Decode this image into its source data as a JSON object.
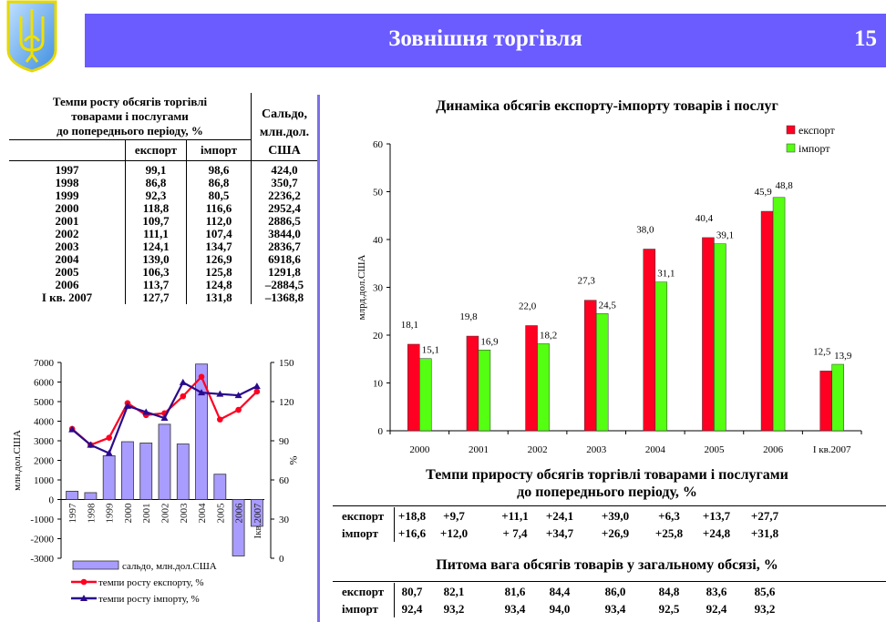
{
  "header": {
    "title": "Зовнішня торгівля",
    "page_number": "15"
  },
  "left_table": {
    "header_rates": "Темпи росту обсягів торгівлі товарами і послугами до попереднього періоду, %",
    "header_rates_lines": [
      "Темпи росту обсягів торгівлі",
      "товарами і послугами",
      "до попереднього періоду, %"
    ],
    "header_export": "експорт",
    "header_import": "імпорт",
    "header_balance_lines": [
      "Сальдо,",
      "млн.дол.",
      "США"
    ],
    "rows": [
      {
        "year": "1997",
        "export": "99,1",
        "import": "98,6",
        "balance": "424,0"
      },
      {
        "year": "1998",
        "export": "86,8",
        "import": "86,8",
        "balance": "350,7"
      },
      {
        "year": "1999",
        "export": "92,3",
        "import": "80,5",
        "balance": "2236,2"
      },
      {
        "year": "2000",
        "export": "118,8",
        "import": "116,6",
        "balance": "2952,4"
      },
      {
        "year": "2001",
        "export": "109,7",
        "import": "112,0",
        "balance": "2886,5"
      },
      {
        "year": "2002",
        "export": "111,1",
        "import": "107,4",
        "balance": "3844,0"
      },
      {
        "year": "2003",
        "export": "124,1",
        "import": "134,7",
        "balance": "2836,7"
      },
      {
        "year": "2004",
        "export": "139,0",
        "import": "126,9",
        "balance": "6918,6"
      },
      {
        "year": "2005",
        "export": "106,3",
        "import": "125,8",
        "balance": "1291,8"
      },
      {
        "year": "2006",
        "export": "113,7",
        "import": "124,8",
        "balance": "–2884,5"
      },
      {
        "year": "І кв. 2007",
        "export": "127,7",
        "import": "131,8",
        "balance": "–1368,8"
      }
    ]
  },
  "chart_data": [
    {
      "type": "bar+line",
      "title": "",
      "categories": [
        "1997",
        "1998",
        "1999",
        "2000",
        "2001",
        "2002",
        "2003",
        "2004",
        "2005",
        "2006",
        "Ікв.2007"
      ],
      "ylabel": "млн.дол.США",
      "y2label": "%",
      "ylim": [
        -3000,
        7000
      ],
      "yticks": [
        "7000",
        "6000",
        "5000",
        "4000",
        "3000",
        "2000",
        "1000",
        "0",
        "-1000",
        "-2000",
        "-3000"
      ],
      "y2lim": [
        0,
        150
      ],
      "y2ticks": [
        "150",
        "120",
        "90",
        "60",
        "30",
        "0"
      ],
      "series": [
        {
          "name": "сальдо, млн.дол.США",
          "type": "bar",
          "axis": "left",
          "color": "#a99cff",
          "values": [
            424.0,
            350.7,
            2236.2,
            2952.4,
            2886.5,
            3844.0,
            2836.7,
            6918.6,
            1291.8,
            -2884.5,
            -1368.8
          ]
        },
        {
          "name": "темпи росту експорту, %",
          "type": "line",
          "axis": "right",
          "color": "#ff0020",
          "marker": "circle",
          "values": [
            99.1,
            86.8,
            92.3,
            118.8,
            109.7,
            111.1,
            124.1,
            139.0,
            106.3,
            113.7,
            127.7
          ]
        },
        {
          "name": "темпи росту імпорту, %",
          "type": "line",
          "axis": "right",
          "color": "#2a0a8c",
          "marker": "triangle",
          "values": [
            98.6,
            86.8,
            80.5,
            116.6,
            112.0,
            107.4,
            134.7,
            126.9,
            125.8,
            124.8,
            131.8
          ]
        }
      ],
      "legend": "bottom"
    },
    {
      "type": "bar",
      "title": "Динаміка обсягів експорту-імпорту товарів і послуг",
      "categories": [
        "2000",
        "2001",
        "2002",
        "2003",
        "2004",
        "2005",
        "2006",
        "І кв.2007"
      ],
      "ylabel": "млрд.дол.США",
      "ylim": [
        0,
        60
      ],
      "yticks": [
        "0",
        "10",
        "20",
        "30",
        "40",
        "50",
        "60"
      ],
      "series": [
        {
          "name": "експорт",
          "color": "#ff0022",
          "values": [
            18.1,
            19.8,
            22.0,
            27.3,
            38.0,
            40.4,
            45.9,
            12.5
          ],
          "labels": [
            "18,1",
            "19,8",
            "22,0",
            "27,3",
            "38,0",
            "40,4",
            "45,9",
            "12,5"
          ]
        },
        {
          "name": "імпорт",
          "color": "#55ff11",
          "values": [
            15.1,
            16.9,
            18.2,
            24.5,
            31.1,
            39.1,
            48.8,
            13.9
          ],
          "labels": [
            "15,1",
            "16,9",
            "18,2",
            "24,5",
            "31,1",
            "39,1",
            "48,8",
            "13,9"
          ]
        }
      ],
      "legend": "top-right"
    }
  ],
  "growth_table": {
    "title_lines": [
      "Темпи  приросту обсягів торгівлі товарами і послугами",
      "до попереднього періоду, %"
    ],
    "rows": [
      {
        "label": "експорт",
        "values": [
          "+18,8",
          "+9,7",
          "+11,1",
          "+24,1",
          "+39,0",
          "+6,3",
          "+13,7",
          "+27,7"
        ]
      },
      {
        "label": "імпорт",
        "values": [
          "+16,6",
          "+12,0",
          "+ 7,4",
          "+34,7",
          "+26,9",
          "+25,8",
          "+24,8",
          "+31,8"
        ]
      }
    ]
  },
  "share_table": {
    "title": "Питома вага обсягів товарів у загальному обсязі, %",
    "rows": [
      {
        "label": "експорт",
        "values": [
          "80,7",
          "82,1",
          "81,6",
          "84,4",
          "86,0",
          "84,8",
          "83,6",
          "85,6"
        ]
      },
      {
        "label": "імпорт",
        "values": [
          "92,4",
          "93,2",
          "93,4",
          "94,0",
          "93,4",
          "92,5",
          "92,4",
          "93,2"
        ]
      }
    ]
  }
}
